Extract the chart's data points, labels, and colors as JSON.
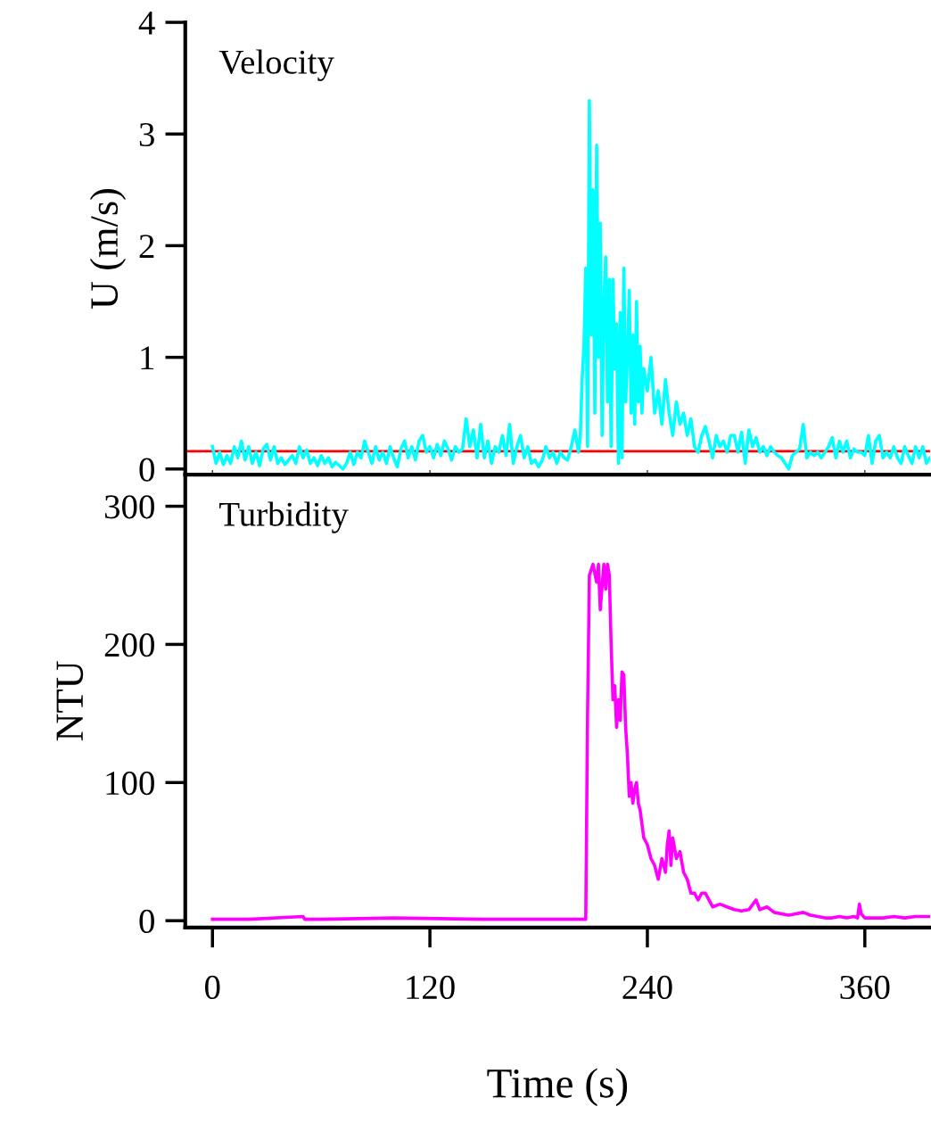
{
  "chart_data": [
    {
      "type": "line",
      "ylabel": "U (m/s)",
      "annotations": [
        "Velocity"
      ],
      "tick_labels": "y",
      "grid": false,
      "xlim": [
        -15,
        396
      ],
      "ylim": [
        -0.05,
        4
      ],
      "yticks": [
        0,
        1,
        2,
        3,
        4
      ],
      "ref_lines": [
        {
          "axis": "y",
          "value": 0.16,
          "color": "#ff0000"
        }
      ],
      "series": [
        {
          "color": "#00ffff",
          "x": [
            0,
            2,
            4,
            6,
            8,
            10,
            12,
            14,
            16,
            18,
            20,
            22,
            24,
            26,
            28,
            30,
            32,
            34,
            36,
            38,
            40,
            44,
            46,
            48,
            50,
            52,
            54,
            56,
            58,
            60,
            62,
            64,
            66,
            68,
            72,
            74,
            76,
            78,
            80,
            82,
            84,
            86,
            88,
            90,
            92,
            94,
            96,
            98,
            100,
            102,
            104,
            106,
            108,
            110,
            112,
            114,
            116,
            118,
            120,
            122,
            124,
            126,
            128,
            130,
            132,
            134,
            136,
            138,
            140,
            142,
            144,
            146,
            148,
            150,
            152,
            154,
            156,
            158,
            160,
            162,
            164,
            166,
            168,
            170,
            172,
            174,
            176,
            178,
            180,
            182,
            184,
            186,
            188,
            190,
            192,
            194,
            196,
            198,
            200,
            202,
            203,
            204,
            205,
            206,
            207,
            208,
            209,
            210,
            211,
            212,
            213,
            214,
            215,
            216,
            217,
            218,
            219,
            220,
            221,
            222,
            223,
            224,
            225,
            226,
            227,
            228,
            229,
            230,
            231,
            232,
            233,
            234,
            235,
            236,
            237,
            238,
            240,
            242,
            244,
            246,
            248,
            250,
            252,
            254,
            256,
            258,
            260,
            262,
            264,
            266,
            268,
            270,
            272,
            274,
            276,
            278,
            280,
            282,
            284,
            286,
            288,
            290,
            292,
            294,
            296,
            298,
            300,
            302,
            304,
            306,
            308,
            310,
            312,
            314,
            316,
            318,
            320,
            322,
            324,
            326,
            328,
            330,
            332,
            334,
            336,
            338,
            340,
            342,
            344,
            346,
            348,
            350,
            352,
            354,
            356,
            358,
            360,
            362,
            364,
            366,
            368,
            370,
            372,
            374,
            376,
            378,
            380,
            382,
            384,
            386,
            388,
            390,
            392,
            394,
            396
          ],
          "values": [
            0.2,
            0.05,
            0.15,
            0.04,
            0.12,
            0.05,
            0.2,
            0.1,
            0.25,
            0.08,
            0.2,
            0.05,
            0.15,
            0.03,
            0.18,
            0.22,
            0.08,
            0.2,
            0.05,
            0.1,
            0.04,
            0.12,
            0.05,
            0.2,
            0.1,
            0.17,
            0.05,
            0.1,
            0.03,
            0.12,
            0.05,
            0.1,
            0.02,
            0.06,
            0.0,
            0.05,
            0.15,
            0.04,
            0.15,
            0.1,
            0.25,
            0.15,
            0.05,
            0.2,
            0.08,
            0.15,
            0.05,
            0.2,
            0.1,
            0.02,
            0.18,
            0.25,
            0.1,
            0.2,
            0.08,
            0.25,
            0.3,
            0.15,
            0.2,
            0.1,
            0.22,
            0.12,
            0.25,
            0.18,
            0.08,
            0.2,
            0.15,
            0.18,
            0.45,
            0.2,
            0.35,
            0.1,
            0.4,
            0.1,
            0.25,
            0.05,
            0.2,
            0.15,
            0.3,
            0.12,
            0.4,
            0.05,
            0.2,
            0.3,
            0.1,
            0.2,
            0.05,
            0.08,
            0.02,
            0.08,
            0.2,
            0.1,
            0.15,
            0.05,
            0.15,
            0.1,
            0.08,
            0.2,
            0.35,
            0.15,
            0.3,
            0.8,
            1.1,
            1.8,
            0.2,
            3.3,
            1.2,
            2.5,
            0.5,
            2.9,
            1.0,
            2.2,
            0.3,
            1.5,
            1.9,
            0.6,
            1.7,
            0.2,
            1.7,
            0.9,
            1.3,
            0.05,
            1.4,
            0.1,
            1.8,
            0.6,
            1.0,
            1.6,
            0.5,
            1.2,
            0.4,
            1.5,
            0.6,
            1.1,
            0.5,
            0.9,
            0.7,
            1.0,
            0.5,
            0.7,
            0.4,
            0.8,
            0.5,
            0.3,
            0.6,
            0.4,
            0.5,
            0.3,
            0.45,
            0.2,
            0.15,
            0.3,
            0.38,
            0.25,
            0.1,
            0.3,
            0.2,
            0.25,
            0.15,
            0.3,
            0.3,
            0.15,
            0.33,
            0.05,
            0.35,
            0.2,
            0.28,
            0.15,
            0.2,
            0.12,
            0.2,
            0.15,
            0.12,
            0.1,
            0.05,
            0.0,
            0.12,
            0.15,
            0.18,
            0.4,
            0.1,
            0.15,
            0.12,
            0.15,
            0.1,
            0.15,
            0.2,
            0.28,
            0.1,
            0.25,
            0.15,
            0.25,
            0.1,
            0.18,
            0.15,
            0.15,
            0.12,
            0.3,
            0.05,
            0.25,
            0.3,
            0.1,
            0.15,
            0.1,
            0.2,
            0.1,
            0.05,
            0.2,
            0.12,
            0.05,
            0.2,
            0.1,
            0.2,
            0.05,
            0.1
          ]
        }
      ]
    },
    {
      "type": "line",
      "ylabel": "NTU",
      "xlabel": "Time (s)",
      "annotations": [
        "Turbidity"
      ],
      "grid": false,
      "xlim": [
        -15,
        396
      ],
      "xticks": [
        0,
        120,
        240,
        360
      ],
      "ylim": [
        -5,
        323
      ],
      "yticks": [
        0,
        100,
        200,
        300
      ],
      "series": [
        {
          "color": "#ff00ff",
          "x": [
            0,
            20,
            50,
            51,
            60,
            100,
            150,
            206,
            207,
            208,
            210,
            212,
            213,
            214,
            216,
            217,
            218,
            219,
            220,
            221,
            222,
            223,
            224,
            225,
            226,
            227,
            228,
            229,
            230,
            231,
            232,
            233,
            234,
            235,
            236,
            237,
            238,
            240,
            242,
            244,
            246,
            248,
            250,
            251,
            252,
            253,
            254,
            256,
            258,
            260,
            262,
            264,
            266,
            268,
            270,
            272,
            274,
            276,
            280,
            284,
            288,
            292,
            296,
            300,
            302,
            306,
            310,
            314,
            318,
            322,
            326,
            330,
            334,
            338,
            342,
            346,
            350,
            354,
            356,
            357,
            358,
            360,
            364,
            370,
            376,
            382,
            388,
            396
          ],
          "values": [
            1,
            1,
            3,
            1,
            1,
            2,
            1,
            1,
            150,
            250,
            258,
            245,
            258,
            225,
            258,
            240,
            258,
            250,
            200,
            160,
            170,
            140,
            160,
            145,
            180,
            178,
            140,
            120,
            90,
            100,
            85,
            95,
            100,
            85,
            80,
            70,
            60,
            55,
            45,
            40,
            30,
            45,
            35,
            55,
            65,
            40,
            60,
            45,
            50,
            35,
            30,
            20,
            20,
            15,
            20,
            20,
            15,
            10,
            12,
            10,
            8,
            7,
            8,
            15,
            8,
            10,
            6,
            5,
            4,
            5,
            6,
            4,
            3,
            2,
            2,
            3,
            2,
            3,
            2,
            12,
            5,
            2,
            2,
            2,
            3,
            2,
            3,
            3
          ]
        }
      ]
    }
  ]
}
